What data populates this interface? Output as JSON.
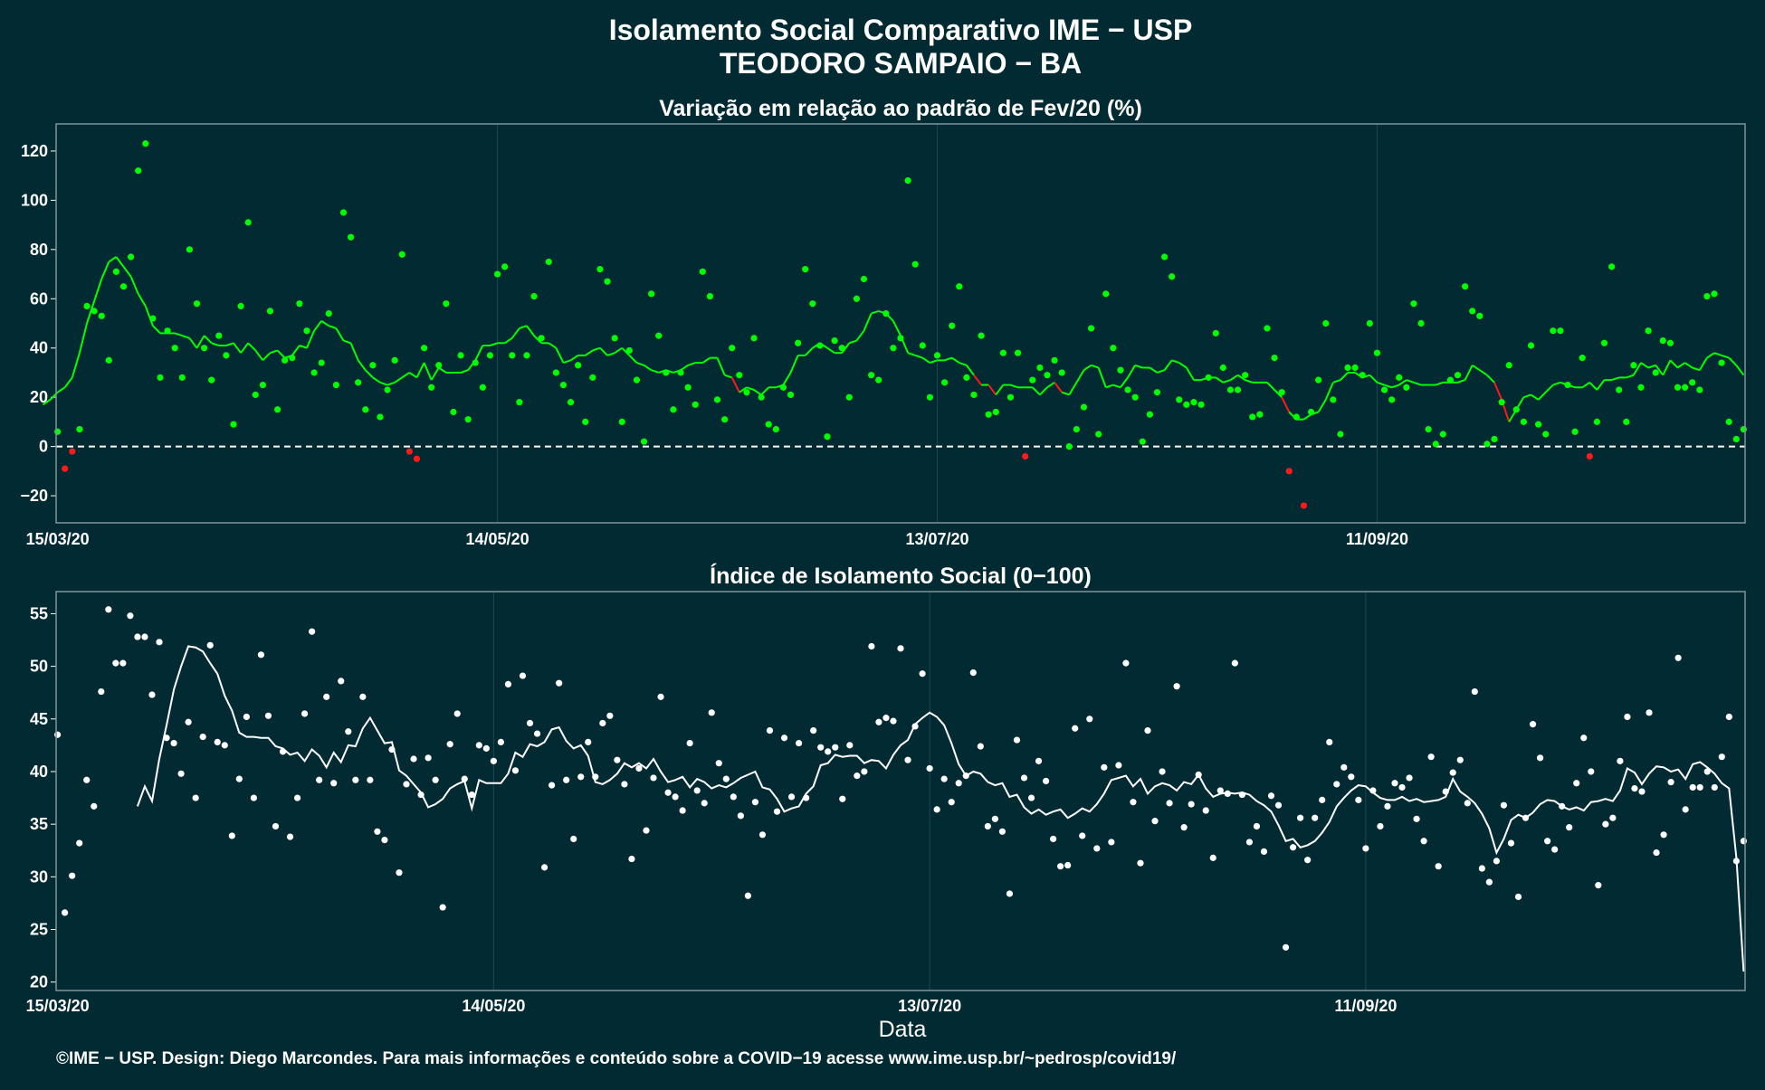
{
  "title_line1": "Isolamento Social Comparativo IME − USP",
  "title_line2": "TEODORO SAMPAIO − BA",
  "x_axis_title": "Data",
  "footer": "©IME − USP. Design: Diego Marcondes. Para mais informações e conteúdo sobre a COVID−19 acesse www.ime.usp.br/~pedrosp/covid19/",
  "colors": {
    "background": "#022a33",
    "panel_border": "#7f9499",
    "gridline": "#1b4753",
    "positive": "#00ff00",
    "negative": "#ff1a1a",
    "index": "#ffffff"
  },
  "chart_data": [
    {
      "type": "scatter",
      "title": "Variação em relação ao padrão de Fev/20 (%)",
      "x_start": "15/03/20",
      "x_end": "06/11/20",
      "x_ticks": [
        "15/03/20",
        "14/05/20",
        "13/07/20",
        "11/09/20"
      ],
      "ylim": [
        -31,
        131
      ],
      "y_ticks": [
        120,
        100,
        80,
        60,
        40,
        20,
        0,
        -20
      ],
      "y_tick_labels": [
        "120",
        "100",
        "80",
        "60",
        "40",
        "20",
        "0",
        "−20"
      ],
      "reference_line": 0,
      "grid": true,
      "series": [
        {
          "values": [
            6,
            -9,
            -2,
            7,
            57,
            55,
            53,
            35,
            71,
            65,
            77,
            112,
            123,
            52,
            28,
            47,
            40,
            28,
            80,
            58,
            40,
            27,
            45,
            37,
            9,
            57,
            91,
            21,
            25,
            55,
            15,
            35,
            36,
            58,
            47,
            30,
            34,
            54,
            25,
            95,
            85,
            26,
            15,
            33,
            12,
            23,
            35,
            78,
            -2,
            -5,
            40,
            24,
            33,
            58,
            14,
            37,
            11,
            34,
            24,
            37,
            70,
            73,
            37,
            18,
            37,
            61,
            44,
            75,
            30,
            25,
            18,
            33,
            10,
            28,
            72,
            67,
            44,
            10,
            39,
            27,
            2,
            62,
            45,
            30,
            15,
            30,
            24,
            17,
            71,
            61,
            19,
            11,
            40,
            29,
            22,
            44,
            20,
            9,
            7,
            24,
            21,
            42,
            72,
            58,
            41,
            4,
            43,
            40,
            20,
            60,
            68,
            29,
            27,
            54,
            40,
            44,
            108,
            74,
            41,
            20,
            37,
            26,
            49,
            65,
            28,
            21,
            45,
            13,
            14,
            38,
            20,
            38,
            -4,
            27,
            32,
            29,
            35,
            30,
            0,
            7,
            16,
            48,
            5,
            62,
            40,
            31,
            23,
            20,
            2,
            13,
            22,
            77,
            69,
            19,
            17,
            18,
            17,
            28,
            46,
            32,
            23,
            23,
            29,
            12,
            13,
            48,
            36,
            22,
            -10,
            12,
            -24,
            14,
            27,
            50,
            19,
            5,
            32,
            32,
            29,
            50,
            38,
            23,
            19,
            28,
            24,
            58,
            50,
            7,
            1,
            5,
            27,
            29,
            65,
            55,
            53,
            1,
            3,
            18,
            33,
            15,
            10,
            41,
            9,
            5,
            47,
            47,
            25,
            6,
            36,
            -4,
            10,
            42,
            73,
            23,
            10,
            33,
            24,
            47,
            30,
            43,
            42,
            24,
            24,
            26,
            23,
            61,
            62,
            34,
            10,
            3,
            7
          ],
          "rolling_mean": [
            17,
            19,
            22,
            24,
            28,
            38,
            50,
            59,
            68,
            75,
            77,
            73,
            69,
            62,
            57,
            49,
            46,
            46,
            46,
            45,
            44,
            40,
            45,
            42,
            41,
            41,
            42,
            38,
            42,
            39,
            35,
            38,
            39,
            36,
            37,
            41,
            40,
            47,
            51,
            49,
            48,
            43,
            42,
            35,
            31,
            28,
            26,
            25,
            26,
            28,
            30,
            28,
            34,
            27,
            32,
            30,
            30,
            30,
            31,
            35,
            41,
            41,
            42,
            42,
            44,
            48,
            49,
            45,
            42,
            42,
            40,
            34,
            35,
            37,
            37,
            39,
            40,
            37,
            38,
            40,
            37,
            34,
            33,
            31,
            30,
            31,
            30,
            31,
            33,
            34,
            34,
            36,
            36,
            29,
            28,
            22,
            24,
            23,
            21,
            24,
            24,
            25,
            30,
            37,
            37,
            40,
            42,
            40,
            38,
            38,
            42,
            43,
            47,
            54,
            55,
            54,
            51,
            45,
            38,
            37,
            36,
            34,
            35,
            35,
            36,
            34,
            33,
            29,
            25,
            25,
            21,
            25,
            25,
            24,
            24,
            24,
            21,
            24,
            26,
            22,
            21,
            26,
            31,
            33,
            32,
            24,
            25,
            24,
            28,
            33,
            32,
            32,
            30,
            31,
            35,
            34,
            32,
            27,
            27,
            28,
            28,
            26,
            27,
            29,
            27,
            26,
            26,
            26,
            23,
            20,
            14,
            11,
            11,
            13,
            14,
            19,
            26,
            27,
            30,
            30,
            28,
            29,
            26,
            25,
            24,
            25,
            27,
            26,
            25,
            25,
            25,
            26,
            26,
            26,
            27,
            33,
            31,
            29,
            26,
            19,
            10,
            15,
            20,
            21,
            19,
            22,
            25,
            26,
            25,
            24,
            24,
            26,
            23,
            27,
            27,
            28,
            28,
            29,
            34,
            32,
            33,
            29,
            35,
            32,
            34,
            32,
            31,
            36,
            38,
            37,
            36,
            33,
            29
          ]
        }
      ]
    },
    {
      "type": "scatter",
      "title": "Índice de Isolamento Social (0−100)",
      "x_start": "15/03/20",
      "x_end": "06/11/20",
      "x_ticks": [
        "15/03/20",
        "14/05/20",
        "13/07/20",
        "11/09/20"
      ],
      "ylim": [
        19.2,
        57.1
      ],
      "y_ticks": [
        55,
        50,
        45,
        40,
        35,
        30,
        25,
        20
      ],
      "xlabel": "Data",
      "grid": true,
      "series": [
        {
          "values": [
            43.5,
            26.6,
            30.1,
            33.2,
            39.2,
            36.7,
            47.6,
            55.4,
            50.3,
            50.3,
            54.8,
            52.8,
            52.8,
            47.3,
            52.3,
            43.2,
            42.7,
            39.8,
            44.7,
            37.5,
            43.3,
            52.0,
            42.8,
            42.5,
            33.9,
            39.3,
            45.2,
            37.5,
            51.1,
            45.3,
            34.8,
            41.9,
            33.8,
            37.5,
            45.5,
            53.3,
            39.2,
            47.1,
            38.9,
            48.6,
            43.8,
            39.2,
            47.1,
            39.2,
            34.3,
            33.5,
            42.1,
            30.4,
            38.8,
            41.2,
            37.8,
            41.3,
            39.2,
            27.1,
            42.6,
            45.5,
            39.3,
            37.8,
            42.5,
            42.2,
            41.0,
            42.8,
            48.3,
            40.1,
            49.1,
            44.6,
            43.6,
            30.9,
            38.7,
            48.4,
            39.2,
            33.6,
            39.5,
            42.8,
            39.5,
            44.6,
            45.3,
            41.1,
            38.8,
            31.7,
            40.3,
            34.4,
            39.4,
            47.1,
            38.0,
            37.6,
            36.3,
            42.7,
            38.2,
            37.0,
            45.6,
            40.8,
            39.3,
            37.6,
            35.8,
            28.2,
            37.1,
            34.0,
            43.9,
            36.2,
            43.2,
            37.6,
            42.7,
            37.5,
            43.9,
            42.3,
            41.9,
            42.3,
            37.4,
            42.5,
            39.6,
            40.0,
            51.9,
            44.7,
            45.1,
            44.8,
            51.7,
            41.1,
            44.3,
            49.3,
            40.3,
            36.4,
            39.3,
            37.1,
            38.9,
            39.6,
            49.4,
            42.4,
            34.8,
            35.5,
            34.3,
            28.4,
            43.0,
            39.4,
            37.5,
            41.0,
            39.1,
            33.6,
            31.0,
            31.1,
            44.1,
            33.9,
            45.0,
            32.7,
            40.4,
            33.3,
            40.6,
            50.3,
            37.1,
            31.3,
            43.9,
            35.3,
            40.0,
            37.0,
            48.1,
            34.7,
            36.9,
            39.7,
            36.3,
            31.8,
            38.2,
            37.9,
            50.3,
            37.8,
            33.3,
            34.8,
            32.4,
            37.7,
            36.8,
            23.3,
            32.8,
            35.6,
            31.6,
            35.6,
            37.3,
            42.8,
            38.8,
            40.4,
            39.5,
            37.3,
            32.7,
            38.2,
            34.8,
            36.7,
            38.9,
            38.5,
            39.4,
            35.5,
            33.4,
            41.4,
            31.0,
            38.1,
            39.9,
            41.1,
            37.0,
            47.6,
            30.8,
            29.5,
            31.5,
            36.8,
            33.2,
            28.1,
            35.6,
            44.5,
            41.3,
            33.4,
            32.6,
            36.7,
            34.7,
            38.9,
            43.2,
            40.0,
            29.2,
            35.0,
            35.6,
            41.0,
            45.2,
            38.4,
            38.1,
            45.6,
            32.3,
            34.0,
            39.0,
            50.8,
            36.4,
            38.5,
            38.5,
            40.0,
            38.5,
            41.4,
            45.2,
            31.5,
            33.4
          ],
          "rolling_mean": [
            36.7,
            38.6,
            37.2,
            41.2,
            44.4,
            47.8,
            50.0,
            51.9,
            51.8,
            51.4,
            50.3,
            49.3,
            47.2,
            45.8,
            43.7,
            43.3,
            43.3,
            43.2,
            43.2,
            42.4,
            42.2,
            41.6,
            41.8,
            41.0,
            42.1,
            41.5,
            40.4,
            41.8,
            40.9,
            42.5,
            42.4,
            44.1,
            45.1,
            43.9,
            42.7,
            42.8,
            40.1,
            39.6,
            38.8,
            38.0,
            36.6,
            36.9,
            37.4,
            38.4,
            38.8,
            39.1,
            36.5,
            39.2,
            38.9,
            38.9,
            38.9,
            39.8,
            41.8,
            41.4,
            42.6,
            42.4,
            42.8,
            44.0,
            44.2,
            42.9,
            42.2,
            42.5,
            41.5,
            39.0,
            38.8,
            39.2,
            39.8,
            40.8,
            40.4,
            40.8,
            40.3,
            41.2,
            40.0,
            39.0,
            39.2,
            39.5,
            38.5,
            39.3,
            39.0,
            38.4,
            38.7,
            38.5,
            38.9,
            39.4,
            39.7,
            40.0,
            38.5,
            38.3,
            37.4,
            36.2,
            36.5,
            36.7,
            37.9,
            38.6,
            40.6,
            40.8,
            41.6,
            41.4,
            41.5,
            41.5,
            40.8,
            41.1,
            41.0,
            40.3,
            41.6,
            42.5,
            43.0,
            44.5,
            45.1,
            45.6,
            45.2,
            44.4,
            42.7,
            40.7,
            39.6,
            40.0,
            39.8,
            39.0,
            38.7,
            38.9,
            37.6,
            37.8,
            36.6,
            36.0,
            36.4,
            35.9,
            36.2,
            36.4,
            35.6,
            36.0,
            36.5,
            36.2,
            36.9,
            37.9,
            39.2,
            39.4,
            39.6,
            38.6,
            39.3,
            37.9,
            38.6,
            38.9,
            38.7,
            38.2,
            39.0,
            38.8,
            39.7,
            38.4,
            37.6,
            37.9,
            38.0,
            37.9,
            38.0,
            37.8,
            37.2,
            36.8,
            36.2,
            34.9,
            33.4,
            33.6,
            32.8,
            33.0,
            33.4,
            34.2,
            35.2,
            36.7,
            37.5,
            38.2,
            38.7,
            38.6,
            38.0,
            37.5,
            37.3,
            37.3,
            37.6,
            37.2,
            37.4,
            37.1,
            37.2,
            37.3,
            37.6,
            39.3,
            38.1,
            37.6,
            37.0,
            36.0,
            34.6,
            32.3,
            33.6,
            35.4,
            35.9,
            35.6,
            36.1,
            36.9,
            37.3,
            37.2,
            36.7,
            36.4,
            36.6,
            36.3,
            37.1,
            37.2,
            37.4,
            37.2,
            38.2,
            40.3,
            39.9,
            38.8,
            39.8,
            40.5,
            40.4,
            40.0,
            40.2,
            39.3,
            40.7,
            40.9,
            40.4,
            39.8,
            38.9,
            38.4,
            31.8,
            21.0
          ]
        }
      ]
    }
  ]
}
